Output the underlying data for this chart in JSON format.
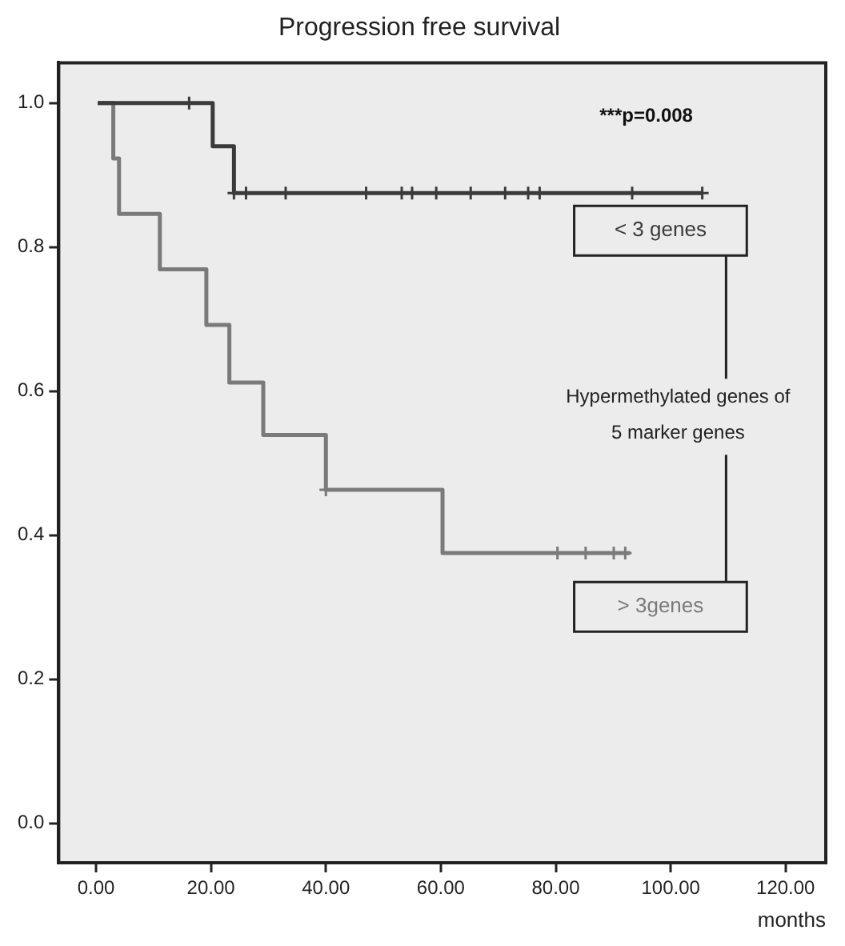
{
  "chart_data": {
    "type": "step",
    "title": "Progression free survival",
    "xlabel": "months",
    "legend_title": "Hypermethylated genes of 5 marker genes",
    "legend": "right",
    "grid": false,
    "annotations": [
      "***p=0.008"
    ],
    "xlim": [
      -6.5,
      127
    ],
    "xticks": [
      {
        "value": 0,
        "label": "0.00"
      },
      {
        "value": 20,
        "label": "20.00"
      },
      {
        "value": 40,
        "label": "40.00"
      },
      {
        "value": 60,
        "label": "60.00"
      },
      {
        "value": 80,
        "label": "80.00"
      },
      {
        "value": 100,
        "label": "100.00"
      },
      {
        "value": 120,
        "label": "120.00"
      }
    ],
    "ylim": [
      -0.055,
      1.056
    ],
    "yticks": [
      {
        "value": 0,
        "label": "0.0"
      },
      {
        "value": 0.2,
        "label": "0.2"
      },
      {
        "value": 0.4,
        "label": "0.4"
      },
      {
        "value": 0.6,
        "label": "0.6"
      },
      {
        "value": 0.8,
        "label": "0.8"
      },
      {
        "value": 1,
        "label": "1.0"
      }
    ],
    "series": [
      {
        "name": "< 3 genes",
        "type": "step",
        "marker": "none",
        "color": "#3a3a3a",
        "x": [
          0.3,
          20.3,
          24,
          105.5
        ],
        "values": [
          1,
          0.94,
          0.875,
          0.875
        ]
      },
      {
        "name": "> 3genes",
        "type": "step",
        "marker": "none",
        "color": "#7a7a7a",
        "x": [
          0.3,
          3,
          4,
          11.1,
          19.2,
          23.2,
          29.1,
          40,
          60.3,
          92.9
        ],
        "values": [
          1,
          0.923,
          0.846,
          0.769,
          0.692,
          0.612,
          0.539,
          0.463,
          0.375,
          0.375
        ]
      },
      {
        "type": "scatter",
        "marker": "cross",
        "color": "#3a3a3a",
        "x": [
          16.2,
          24,
          26.1,
          33,
          47,
          53.2,
          55,
          59.2,
          65.2,
          71.2,
          75.2,
          77.2,
          93.3,
          105.5
        ],
        "values": [
          1,
          0.875,
          0.875,
          0.875,
          0.875,
          0.875,
          0.875,
          0.875,
          0.875,
          0.875,
          0.875,
          0.875,
          0.875,
          0.875
        ]
      },
      {
        "type": "scatter",
        "marker": "cross",
        "color": "#7a7a7a",
        "x": [
          40,
          80.3,
          85.2,
          90.1,
          92.1
        ],
        "values": [
          0.463,
          0.375,
          0.375,
          0.375,
          0.375
        ]
      }
    ]
  }
}
